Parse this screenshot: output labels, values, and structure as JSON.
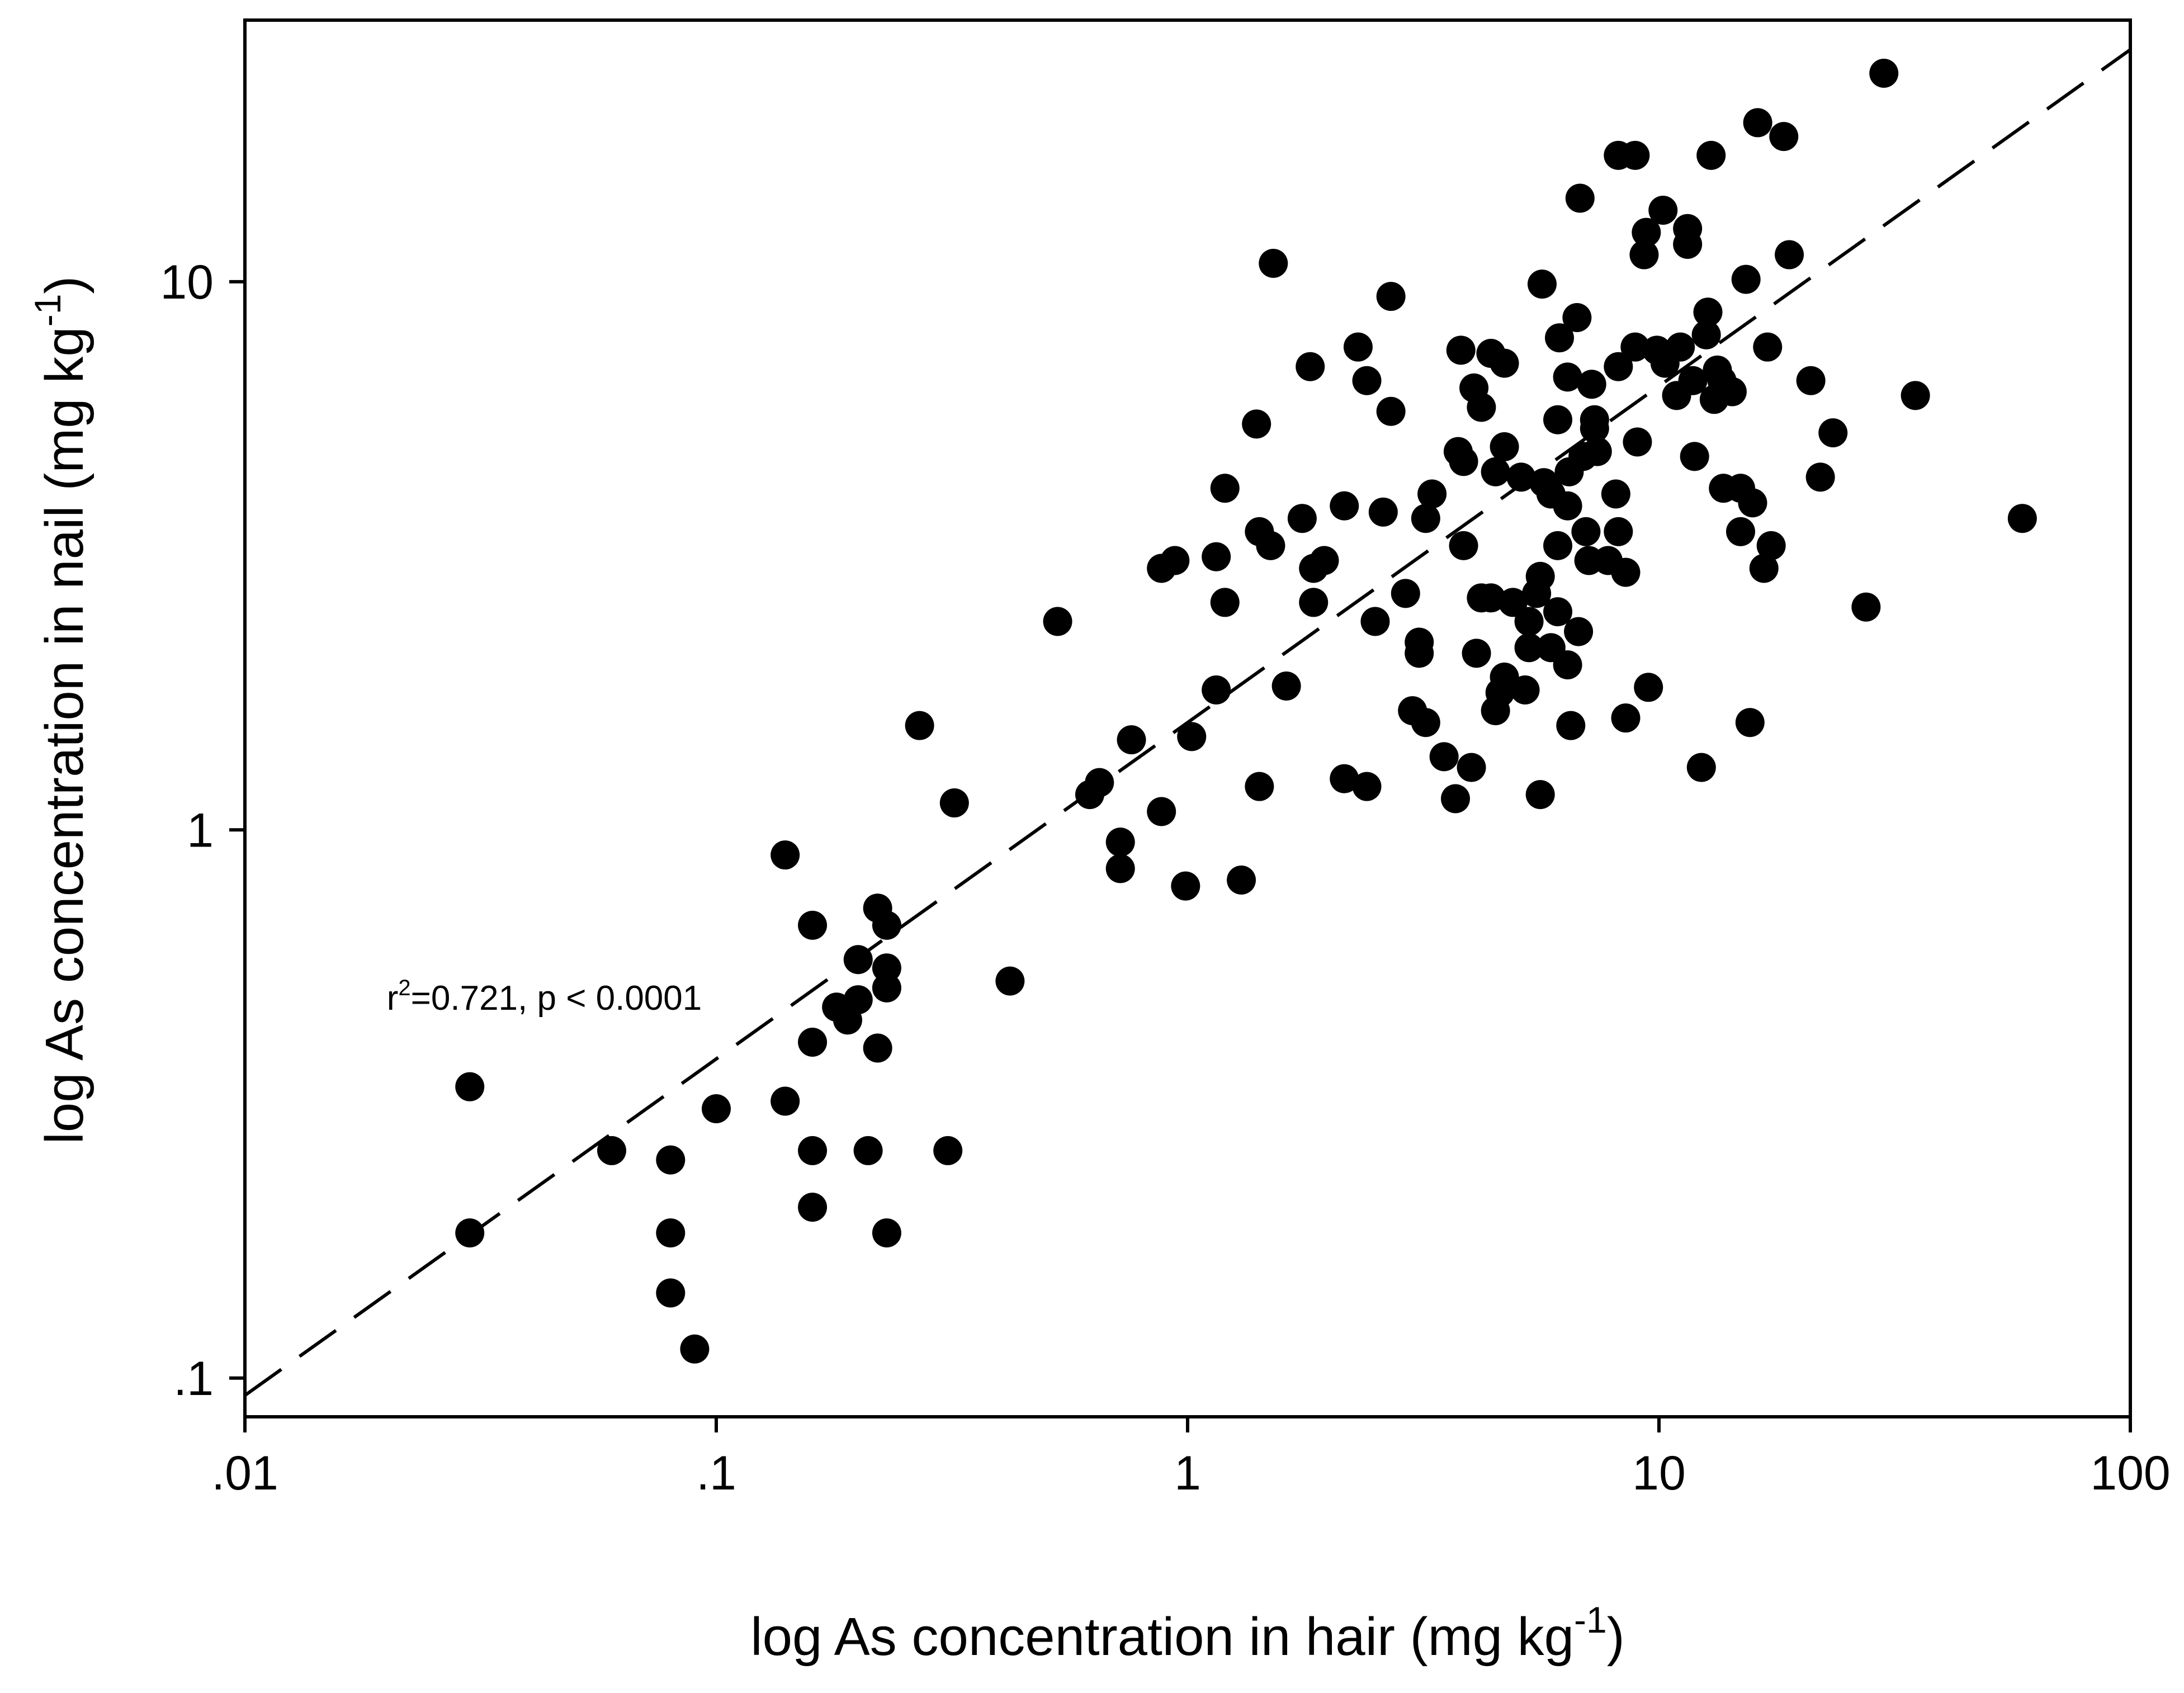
{
  "chart_data": {
    "type": "scatter",
    "xlabel": "log As concentration in hair (mg kg",
    "xlabel_sup": "-1",
    "xlabel_close": ")",
    "ylabel": "log As concentration in nail (mg kg",
    "ylabel_sup": "-1",
    "ylabel_close": ")",
    "x_scale": "log",
    "y_scale": "log",
    "xlim": [
      0.01,
      100
    ],
    "ylim": [
      0.085,
      30
    ],
    "x_ticks": [
      {
        "value": 0.01,
        "label": ".01"
      },
      {
        "value": 0.1,
        "label": ".1"
      },
      {
        "value": 1,
        "label": "1"
      },
      {
        "value": 10,
        "label": "10"
      },
      {
        "value": 100,
        "label": "100"
      }
    ],
    "y_ticks": [
      {
        "value": 0.1,
        "label": ".1"
      },
      {
        "value": 1,
        "label": "1"
      },
      {
        "value": 10,
        "label": "10"
      }
    ],
    "grid": false,
    "annotation": {
      "prefix": "r",
      "sup": "2",
      "text": "=0.721, p < 0.0001",
      "x": 0.02,
      "y": 0.47
    },
    "fit_line": {
      "style": "dashed",
      "x": [
        0.01,
        100
      ],
      "y": [
        0.093,
        26.5
      ]
    },
    "series": [
      {
        "marker": "filled-circle",
        "color": "#000000",
        "points": [
          [
            0.03,
            0.34
          ],
          [
            0.03,
            0.184
          ],
          [
            0.06,
            0.26
          ],
          [
            0.08,
            0.25
          ],
          [
            0.08,
            0.184
          ],
          [
            0.08,
            0.143
          ],
          [
            0.09,
            0.113
          ],
          [
            0.1,
            0.31
          ],
          [
            0.14,
            0.9
          ],
          [
            0.14,
            0.32
          ],
          [
            0.16,
            0.67
          ],
          [
            0.16,
            0.41
          ],
          [
            0.16,
            0.26
          ],
          [
            0.16,
            0.205
          ],
          [
            0.18,
            0.475
          ],
          [
            0.19,
            0.45
          ],
          [
            0.2,
            0.58
          ],
          [
            0.2,
            0.49
          ],
          [
            0.21,
            0.26
          ],
          [
            0.22,
            0.72
          ],
          [
            0.22,
            0.4
          ],
          [
            0.23,
            0.67
          ],
          [
            0.23,
            0.56
          ],
          [
            0.23,
            0.515
          ],
          [
            0.23,
            0.184
          ],
          [
            0.27,
            1.55
          ],
          [
            0.31,
            0.26
          ],
          [
            0.32,
            1.12
          ],
          [
            0.42,
            0.53
          ],
          [
            0.53,
            2.4
          ],
          [
            0.62,
            1.16
          ],
          [
            0.65,
            1.22
          ],
          [
            0.72,
            0.95
          ],
          [
            0.72,
            0.85
          ],
          [
            0.76,
            1.46
          ],
          [
            0.88,
            3.0
          ],
          [
            0.88,
            1.08
          ],
          [
            0.94,
            3.1
          ],
          [
            0.99,
            0.79
          ],
          [
            1.02,
            1.48
          ],
          [
            1.15,
            1.8
          ],
          [
            1.15,
            3.15
          ],
          [
            1.2,
            4.2
          ],
          [
            1.2,
            2.6
          ],
          [
            1.3,
            0.81
          ],
          [
            1.4,
            5.5
          ],
          [
            1.42,
            3.5
          ],
          [
            1.42,
            1.2
          ],
          [
            1.5,
            3.3
          ],
          [
            1.52,
            10.8
          ],
          [
            1.62,
            1.83
          ],
          [
            1.75,
            3.7
          ],
          [
            1.82,
            7.0
          ],
          [
            1.85,
            3.0
          ],
          [
            1.85,
            2.6
          ],
          [
            1.95,
            3.1
          ],
          [
            2.15,
            3.9
          ],
          [
            2.15,
            1.24
          ],
          [
            2.3,
            7.6
          ],
          [
            2.4,
            6.6
          ],
          [
            2.4,
            1.2
          ],
          [
            2.5,
            2.4
          ],
          [
            2.6,
            3.8
          ],
          [
            2.7,
            5.8
          ],
          [
            2.7,
            9.4
          ],
          [
            2.9,
            2.7
          ],
          [
            3.0,
            1.65
          ],
          [
            3.1,
            2.2
          ],
          [
            3.1,
            2.1
          ],
          [
            3.2,
            1.57
          ],
          [
            3.2,
            3.7
          ],
          [
            3.3,
            4.1
          ],
          [
            3.5,
            1.36
          ],
          [
            3.7,
            1.14
          ],
          [
            3.75,
            4.9
          ],
          [
            3.8,
            7.5
          ],
          [
            3.85,
            4.7
          ],
          [
            3.85,
            3.3
          ],
          [
            4.0,
            1.3
          ],
          [
            4.05,
            6.4
          ],
          [
            4.1,
            2.1
          ],
          [
            4.2,
            5.9
          ],
          [
            4.2,
            2.65
          ],
          [
            4.4,
            7.4
          ],
          [
            4.4,
            2.65
          ],
          [
            4.5,
            1.65
          ],
          [
            4.5,
            4.5
          ],
          [
            4.6,
            1.78
          ],
          [
            4.7,
            7.1
          ],
          [
            4.7,
            5.0
          ],
          [
            4.7,
            1.9
          ],
          [
            4.9,
            2.6
          ],
          [
            5.1,
            4.4
          ],
          [
            5.2,
            1.8
          ],
          [
            5.3,
            2.4
          ],
          [
            5.3,
            2.15
          ],
          [
            5.5,
            2.7
          ],
          [
            5.6,
            2.9
          ],
          [
            5.6,
            1.16
          ],
          [
            5.65,
            9.9
          ],
          [
            5.7,
            4.3
          ],
          [
            5.9,
            4.1
          ],
          [
            5.9,
            2.15
          ],
          [
            6.1,
            2.5
          ],
          [
            6.1,
            5.6
          ],
          [
            6.1,
            3.3
          ],
          [
            6.15,
            7.9
          ],
          [
            6.4,
            6.7
          ],
          [
            6.4,
            2.0
          ],
          [
            6.4,
            3.9
          ],
          [
            6.45,
            4.5
          ],
          [
            6.5,
            1.55
          ],
          [
            6.7,
            8.6
          ],
          [
            6.75,
            2.3
          ],
          [
            6.8,
            14.2
          ],
          [
            6.9,
            4.8
          ],
          [
            7.0,
            3.5
          ],
          [
            7.1,
            3.1
          ],
          [
            7.2,
            6.5
          ],
          [
            7.3,
            5.6
          ],
          [
            7.3,
            5.4
          ],
          [
            7.4,
            4.9
          ],
          [
            7.8,
            3.1
          ],
          [
            8.1,
            4.1
          ],
          [
            8.2,
            3.5
          ],
          [
            8.2,
            7.0
          ],
          [
            8.2,
            17.0
          ],
          [
            8.5,
            1.6
          ],
          [
            8.5,
            2.95
          ],
          [
            8.9,
            17.0
          ],
          [
            8.9,
            7.6
          ],
          [
            9.0,
            5.1
          ],
          [
            9.3,
            11.2
          ],
          [
            9.4,
            12.3
          ],
          [
            9.5,
            1.82
          ],
          [
            9.9,
            7.5
          ],
          [
            10.2,
            13.5
          ],
          [
            10.3,
            7.1
          ],
          [
            10.9,
            6.2
          ],
          [
            11.1,
            7.6
          ],
          [
            11.5,
            11.7
          ],
          [
            11.5,
            12.5
          ],
          [
            11.8,
            6.6
          ],
          [
            11.9,
            4.8
          ],
          [
            12.3,
            1.3
          ],
          [
            12.6,
            8.0
          ],
          [
            12.7,
            8.8
          ],
          [
            12.9,
            17.0
          ],
          [
            13.1,
            6.1
          ],
          [
            13.3,
            6.9
          ],
          [
            13.6,
            6.6
          ],
          [
            13.7,
            4.2
          ],
          [
            14.3,
            6.3
          ],
          [
            14.9,
            4.2
          ],
          [
            14.9,
            3.5
          ],
          [
            15.3,
            10.1
          ],
          [
            15.6,
            1.57
          ],
          [
            15.8,
            3.95
          ],
          [
            16.2,
            19.5
          ],
          [
            16.7,
            3.0
          ],
          [
            17.0,
            7.6
          ],
          [
            17.3,
            3.3
          ],
          [
            18.4,
            18.4
          ],
          [
            18.9,
            11.2
          ],
          [
            21.0,
            6.6
          ],
          [
            22.0,
            4.4
          ],
          [
            23.4,
            5.3
          ],
          [
            27.5,
            2.55
          ],
          [
            30.0,
            24.0
          ],
          [
            35.0,
            6.2
          ],
          [
            59.0,
            3.7
          ]
        ]
      }
    ]
  }
}
